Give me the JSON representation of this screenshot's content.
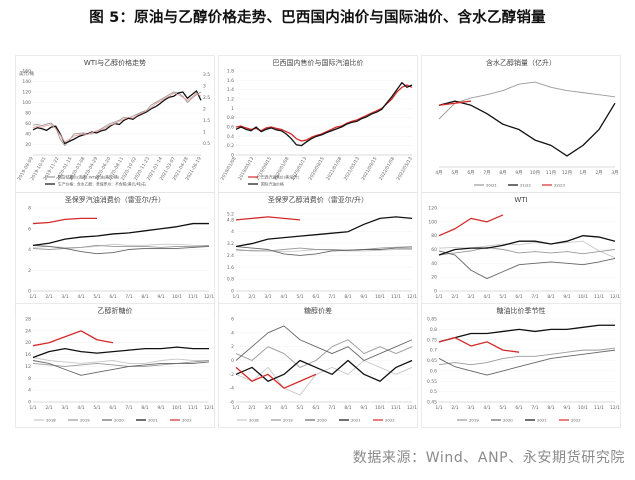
{
  "figure": {
    "title": "图 5：原油与乙醇价格走势、巴西国内油价与国际油价、含水乙醇销量",
    "source": "数据来源：Wind、ANP、永安期货研究院"
  },
  "colors": {
    "red": "#d42a2a",
    "black": "#111111",
    "gray": "#9a9a9a",
    "lightgray": "#c8c8c8",
    "pink": "#e8a0a0",
    "darkgray": "#666666"
  },
  "chart_data": [
    {
      "id": "c1",
      "type": "line",
      "title": "WTI与乙醇价格走势",
      "ylabel": "美元/桶",
      "xticks": [
        "2019-08-09",
        "2019-10-01",
        "2019-11-22",
        "2020-01-15",
        "2020-03-08",
        "2020-04-29",
        "2020-06-20",
        "2020-08-11",
        "2020-10-02",
        "2020-11-23",
        "2021-01-14",
        "2021-03-07",
        "2021-04-28",
        "2021-06-19"
      ],
      "yticks": [
        "20",
        "40",
        "60",
        "80",
        "100",
        "120",
        "140",
        "160"
      ],
      "y2ticks": [
        "0.5",
        "1",
        "1.5",
        "2",
        "2.5",
        "3",
        "3.5"
      ],
      "ylim": [
        0,
        160
      ],
      "series": [
        {
          "name": "期货结算价(连续):WTI原油(美元/桶)",
          "color": "gray",
          "values": [
            57,
            58,
            56,
            59,
            61,
            52,
            30,
            18,
            28,
            40,
            41,
            42,
            41,
            40,
            45,
            50,
            55,
            60,
            63,
            66,
            72,
            70,
            74,
            78,
            82,
            85,
            95,
            100,
            105,
            110,
            115,
            120,
            118,
            112,
            100,
            108,
            115,
            120
          ]
        },
        {
          "name": "生产价格：含水乙醇：圣保罗州：不含税(美元/吨)右",
          "color": "black",
          "values": [
            48,
            52,
            50,
            47,
            53,
            55,
            40,
            22,
            26,
            30,
            35,
            38,
            40,
            44,
            42,
            46,
            48,
            55,
            60,
            58,
            66,
            70,
            68,
            74,
            78,
            82,
            88,
            92,
            98,
            105,
            110,
            112,
            118,
            120,
            108,
            115,
            122,
            104
          ]
        },
        {
          "name": "",
          "color": "pink",
          "values": [
            52,
            55,
            53,
            56,
            58,
            50,
            38,
            25,
            30,
            36,
            38,
            40,
            39,
            43,
            46,
            48,
            52,
            57,
            60,
            64,
            68,
            72,
            70,
            76,
            80,
            84,
            90,
            98,
            102,
            108,
            112,
            118,
            115,
            110,
            104,
            110,
            118,
            112
          ]
        }
      ]
    },
    {
      "id": "c2",
      "type": "line",
      "title": "巴西国内售价与国际汽油比价",
      "xticks": [
        "2019/01/08",
        "2019/05/13",
        "2019/09/15",
        "2020/01/08",
        "2020/05/13",
        "2020/09/15",
        "2021/01/08",
        "2021/05/13",
        "2021/09/15",
        "2022/01/08",
        "2022/05/13"
      ],
      "yticks": [
        "0",
        "0.2",
        "0.4",
        "0.6",
        "0.8",
        "1",
        "1.2",
        "1.4",
        "1.6",
        "1.8"
      ],
      "ylim": [
        0,
        1.8
      ],
      "series": [
        {
          "name": "巴西汽油售价(美元/升)",
          "color": "red",
          "values": [
            0.6,
            0.62,
            0.58,
            0.55,
            0.57,
            0.52,
            0.58,
            0.6,
            0.57,
            0.55,
            0.5,
            0.45,
            0.35,
            0.3,
            0.32,
            0.38,
            0.42,
            0.45,
            0.5,
            0.55,
            0.6,
            0.62,
            0.68,
            0.72,
            0.75,
            0.8,
            0.85,
            0.9,
            0.95,
            1.0,
            1.1,
            1.2,
            1.35,
            1.45,
            1.5,
            1.45
          ]
        },
        {
          "name": "国际汽油价格",
          "color": "black",
          "values": [
            0.55,
            0.6,
            0.55,
            0.52,
            0.6,
            0.5,
            0.55,
            0.58,
            0.54,
            0.52,
            0.45,
            0.35,
            0.22,
            0.2,
            0.28,
            0.35,
            0.4,
            0.43,
            0.48,
            0.52,
            0.56,
            0.6,
            0.66,
            0.7,
            0.72,
            0.78,
            0.82,
            0.88,
            0.92,
            0.98,
            1.12,
            1.25,
            1.4,
            1.55,
            1.45,
            1.5
          ]
        }
      ]
    },
    {
      "id": "c3",
      "type": "line",
      "title": "含水乙醇销量（亿升）",
      "xticks": [
        "4月",
        "5月",
        "6月",
        "7月",
        "8月",
        "9月",
        "10月",
        "11月",
        "12月",
        "1月",
        "2月",
        "3月"
      ],
      "series": [
        {
          "name": "20/21",
          "color": "gray",
          "values": [
            0.55,
            0.7,
            0.75,
            0.78,
            0.82,
            0.88,
            0.9,
            0.85,
            0.82,
            0.8,
            0.78,
            0.76
          ]
        },
        {
          "name": "21/22",
          "color": "black",
          "values": [
            0.68,
            0.72,
            0.68,
            0.6,
            0.5,
            0.45,
            0.35,
            0.3,
            0.2,
            0.3,
            0.45,
            0.7
          ]
        },
        {
          "name": "22/23",
          "color": "red",
          "values": [
            0.68,
            0.7,
            0.72
          ]
        }
      ]
    },
    {
      "id": "c4",
      "type": "line",
      "title": "圣保罗汽油消费价（雷亚尔/升）",
      "xticks": [
        "1/1",
        "2/1",
        "3/1",
        "4/1",
        "5/1",
        "6/1",
        "7/1",
        "8/1",
        "9/1",
        "10/1",
        "11/1",
        "12/1"
      ],
      "yticks": [
        "0",
        "2",
        "4",
        "6",
        "8"
      ],
      "ylim": [
        0,
        8
      ],
      "series": [
        {
          "name": "2018",
          "color": "lightgray",
          "values": [
            4.2,
            4.3,
            4.2,
            4.2,
            4.3,
            4.5,
            4.4,
            4.4,
            4.5,
            4.5,
            4.4,
            4.3
          ]
        },
        {
          "name": "2019",
          "color": "gray",
          "values": [
            4.1,
            4.0,
            4.1,
            4.2,
            4.4,
            4.3,
            4.3,
            4.3,
            4.2,
            4.3,
            4.3,
            4.4
          ]
        },
        {
          "name": "2020",
          "color": "darkgray",
          "values": [
            4.4,
            4.3,
            4.1,
            3.8,
            3.6,
            3.7,
            4.0,
            4.1,
            4.1,
            4.1,
            4.2,
            4.3
          ]
        },
        {
          "name": "2021",
          "color": "black",
          "values": [
            4.4,
            4.6,
            5.0,
            5.2,
            5.3,
            5.5,
            5.6,
            5.8,
            6.0,
            6.2,
            6.5,
            6.5
          ]
        },
        {
          "name": "2022",
          "color": "red",
          "values": [
            6.5,
            6.6,
            6.9,
            7.0,
            7.0
          ]
        }
      ]
    },
    {
      "id": "c5",
      "type": "line",
      "title": "圣保罗乙醇消费价（雷亚尔/升）",
      "xticks": [
        "1/1",
        "2/1",
        "3/1",
        "4/1",
        "5/1",
        "6/1",
        "7/1",
        "8/1",
        "9/1",
        "10/1",
        "11/1",
        "12/1"
      ],
      "yticks": [
        "0",
        "0.8",
        "1.6",
        "2.4",
        "3.2",
        "4",
        "4.8",
        "5.2"
      ],
      "ylim": [
        0,
        5.6
      ],
      "series": [
        {
          "name": "2018",
          "color": "lightgray",
          "values": [
            2.7,
            2.75,
            2.7,
            2.65,
            2.7,
            2.8,
            2.75,
            2.7,
            2.7,
            2.75,
            2.8,
            2.8
          ]
        },
        {
          "name": "2019",
          "color": "gray",
          "values": [
            2.8,
            2.7,
            2.7,
            2.8,
            2.9,
            2.8,
            2.8,
            2.75,
            2.8,
            2.9,
            2.95,
            3.0
          ]
        },
        {
          "name": "2020",
          "color": "darkgray",
          "values": [
            3.0,
            2.9,
            2.8,
            2.5,
            2.4,
            2.5,
            2.7,
            2.75,
            2.8,
            2.8,
            2.9,
            2.9
          ]
        },
        {
          "name": "2021",
          "color": "black",
          "values": [
            3.0,
            3.2,
            3.5,
            3.6,
            3.7,
            3.8,
            3.9,
            4.0,
            4.5,
            4.9,
            5.0,
            4.9
          ]
        },
        {
          "name": "2022",
          "color": "red",
          "values": [
            4.8,
            4.9,
            5.0,
            4.9,
            4.8
          ]
        }
      ]
    },
    {
      "id": "c6",
      "type": "line",
      "title": "WTI",
      "xticks": [
        "1/1",
        "2/1",
        "3/1",
        "4/1",
        "5/1",
        "6/1",
        "7/1",
        "8/1",
        "9/1",
        "10/1",
        "11/1",
        "12/1"
      ],
      "yticks": [
        "0",
        "20",
        "40",
        "60",
        "80",
        "100",
        "120"
      ],
      "ylim": [
        0,
        120
      ],
      "series": [
        {
          "name": "2018",
          "color": "lightgray",
          "values": [
            62,
            63,
            62,
            65,
            68,
            67,
            70,
            68,
            70,
            72,
            58,
            48
          ]
        },
        {
          "name": "2019",
          "color": "gray",
          "values": [
            52,
            55,
            58,
            63,
            60,
            55,
            57,
            55,
            57,
            54,
            57,
            60
          ]
        },
        {
          "name": "2020",
          "color": "darkgray",
          "values": [
            58,
            52,
            30,
            18,
            28,
            38,
            40,
            42,
            40,
            38,
            42,
            47
          ]
        },
        {
          "name": "2021",
          "color": "black",
          "values": [
            52,
            60,
            62,
            62,
            66,
            72,
            72,
            68,
            72,
            80,
            78,
            72
          ]
        },
        {
          "name": "2022",
          "color": "red",
          "values": [
            80,
            90,
            105,
            100,
            110
          ]
        }
      ]
    },
    {
      "id": "c7",
      "type": "line",
      "title": "乙醇折糖价",
      "xticks": [
        "1/1",
        "2/1",
        "3/1",
        "4/1",
        "5/1",
        "6/1",
        "7/1",
        "8/1",
        "9/1",
        "10/1",
        "11/1",
        "12/1"
      ],
      "yticks": [
        "0",
        "4",
        "8",
        "12",
        "16",
        "20",
        "24",
        "28"
      ],
      "ylim": [
        0,
        28
      ],
      "series": [
        {
          "name": "2018",
          "color": "lightgray",
          "values": [
            15,
            14,
            13.5,
            13,
            13.5,
            14,
            13,
            13,
            14,
            14.5,
            14,
            14
          ]
        },
        {
          "name": "2019",
          "color": "gray",
          "values": [
            13,
            12.5,
            12,
            12.5,
            13,
            12.5,
            12,
            12,
            12.5,
            13,
            13.5,
            14
          ]
        },
        {
          "name": "2020",
          "color": "darkgray",
          "values": [
            14,
            13,
            11,
            9,
            10,
            11,
            12,
            12.5,
            13,
            13,
            13,
            13.5
          ]
        },
        {
          "name": "2021",
          "color": "black",
          "values": [
            15,
            17,
            18,
            17,
            16.5,
            17,
            17.5,
            18,
            18,
            18.5,
            18,
            18
          ]
        },
        {
          "name": "2022",
          "color": "red",
          "values": [
            19,
            20,
            22,
            24,
            21,
            20
          ]
        }
      ]
    },
    {
      "id": "c8",
      "type": "line",
      "title": "糖醇价差",
      "xticks": [
        "1/1",
        "2/1",
        "3/1",
        "4/1",
        "5/1",
        "6/1",
        "7/1",
        "8/1",
        "9/1",
        "10/1",
        "11/1",
        "12/1"
      ],
      "yticks": [
        "-6",
        "-4",
        "-2",
        "0",
        "2",
        "4",
        "6"
      ],
      "ylim": [
        -6,
        6
      ],
      "series": [
        {
          "name": "2018",
          "color": "lightgray",
          "values": [
            -2,
            -3,
            -1,
            -4,
            -5,
            -2,
            -1,
            -2,
            0,
            -1,
            -2,
            -1
          ]
        },
        {
          "name": "2019",
          "color": "gray",
          "values": [
            1,
            0,
            2,
            1,
            -1,
            0,
            2,
            3,
            1,
            2,
            1,
            2
          ]
        },
        {
          "name": "2020",
          "color": "darkgray",
          "values": [
            0,
            2,
            4,
            5,
            3,
            2,
            1,
            2,
            0,
            1,
            2,
            3
          ]
        },
        {
          "name": "2021",
          "color": "black",
          "values": [
            -2,
            -1,
            -3,
            -2,
            0,
            -1,
            -2,
            0,
            -2,
            -3,
            -1,
            0
          ]
        },
        {
          "name": "2022",
          "color": "red",
          "values": [
            -1,
            -3,
            -2,
            -4,
            -3,
            -2
          ]
        }
      ]
    },
    {
      "id": "c9",
      "type": "line",
      "title": "糖油比价季节性",
      "xticks": [
        "1/1",
        "2/1",
        "3/1",
        "4/1",
        "5/1",
        "6/1",
        "7/1",
        "8/1",
        "9/1",
        "10/1",
        "11/1",
        "12/1"
      ],
      "yticks": [
        "0.45",
        "0.5",
        "0.55",
        "0.6",
        "0.65",
        "0.7",
        "0.75",
        "0.8",
        "0.85"
      ],
      "ylim": [
        0.45,
        0.85
      ],
      "series": [
        {
          "name": "2019",
          "color": "gray",
          "values": [
            0.63,
            0.64,
            0.63,
            0.64,
            0.66,
            0.67,
            0.67,
            0.68,
            0.69,
            0.7,
            0.7,
            0.71
          ]
        },
        {
          "name": "2020",
          "color": "darkgray",
          "values": [
            0.66,
            0.62,
            0.6,
            0.58,
            0.6,
            0.62,
            0.64,
            0.66,
            0.67,
            0.68,
            0.69,
            0.7
          ]
        },
        {
          "name": "2021",
          "color": "black",
          "values": [
            0.74,
            0.76,
            0.78,
            0.78,
            0.79,
            0.8,
            0.79,
            0.8,
            0.8,
            0.81,
            0.82,
            0.82
          ]
        },
        {
          "name": "2022",
          "color": "red",
          "values": [
            0.74,
            0.76,
            0.72,
            0.74,
            0.7,
            0.69
          ]
        }
      ]
    }
  ]
}
